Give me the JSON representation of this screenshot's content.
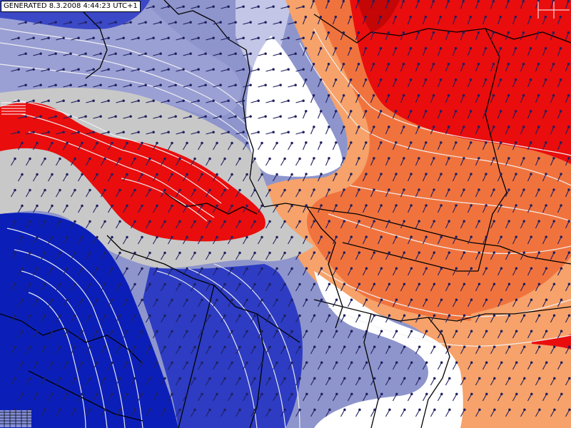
{
  "header": {
    "generated_stamp": "GENERATED 8.3.2008 4:44:23 UTC+1"
  },
  "legend_colors": {
    "deep_blue": "#0b1fb8",
    "mid_blue": "#2d3cc2",
    "light_blue": "#8e95cc",
    "pale_blue": "#c3c6e6",
    "grey_band": "#c8c8c8",
    "white": "#ffffff",
    "peach": "#f6a26a",
    "orange": "#f0733e",
    "red": "#e90d0d",
    "dark_red": "#c40606",
    "wind_arrow": "#202060",
    "border": "#000000",
    "isoline": "#f2f2f2"
  },
  "icons": [
    "wind-barb-icon",
    "grid-corner-icon"
  ]
}
